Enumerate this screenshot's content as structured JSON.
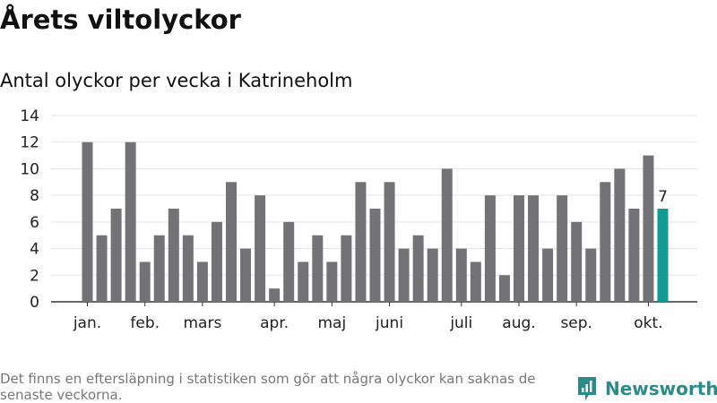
{
  "header": {
    "title": "Årets viltolyckor",
    "subtitle": "Antal olyckor per vecka i Katrineholm"
  },
  "chart_data": {
    "type": "bar",
    "title": "Antal olyckor per vecka i Katrineholm",
    "xlabel": "",
    "ylabel": "",
    "ylim": [
      0,
      14
    ],
    "yticks": [
      0,
      2,
      4,
      6,
      8,
      10,
      12,
      14
    ],
    "grid": true,
    "values": [
      12,
      5,
      7,
      12,
      3,
      5,
      7,
      5,
      3,
      6,
      9,
      4,
      8,
      1,
      6,
      3,
      5,
      3,
      5,
      9,
      7,
      9,
      4,
      5,
      4,
      10,
      4,
      3,
      8,
      2,
      8,
      8,
      4,
      8,
      6,
      4,
      9,
      10,
      7,
      11,
      7
    ],
    "month_labels": [
      {
        "label": "jan.",
        "bar": 0
      },
      {
        "label": "feb.",
        "bar": 4
      },
      {
        "label": "mars",
        "bar": 8
      },
      {
        "label": "apr.",
        "bar": 13
      },
      {
        "label": "maj",
        "bar": 17
      },
      {
        "label": "juni",
        "bar": 21
      },
      {
        "label": "juli",
        "bar": 26
      },
      {
        "label": "aug.",
        "bar": 30
      },
      {
        "label": "sep.",
        "bar": 34
      },
      {
        "label": "okt.",
        "bar": 39
      }
    ],
    "highlight": {
      "bar": 40,
      "label": "7"
    },
    "colors": {
      "bar": "#737276",
      "highlight": "#139a94",
      "grid": "#e3e3e3",
      "axis": "#333333"
    }
  },
  "footer": {
    "note": "Det finns en eftersläpning i statistiken som gör att några olyckor kan saknas de senaste veckorna.",
    "brand": "Newsworthy",
    "brand_color": "#2c8a8b"
  }
}
